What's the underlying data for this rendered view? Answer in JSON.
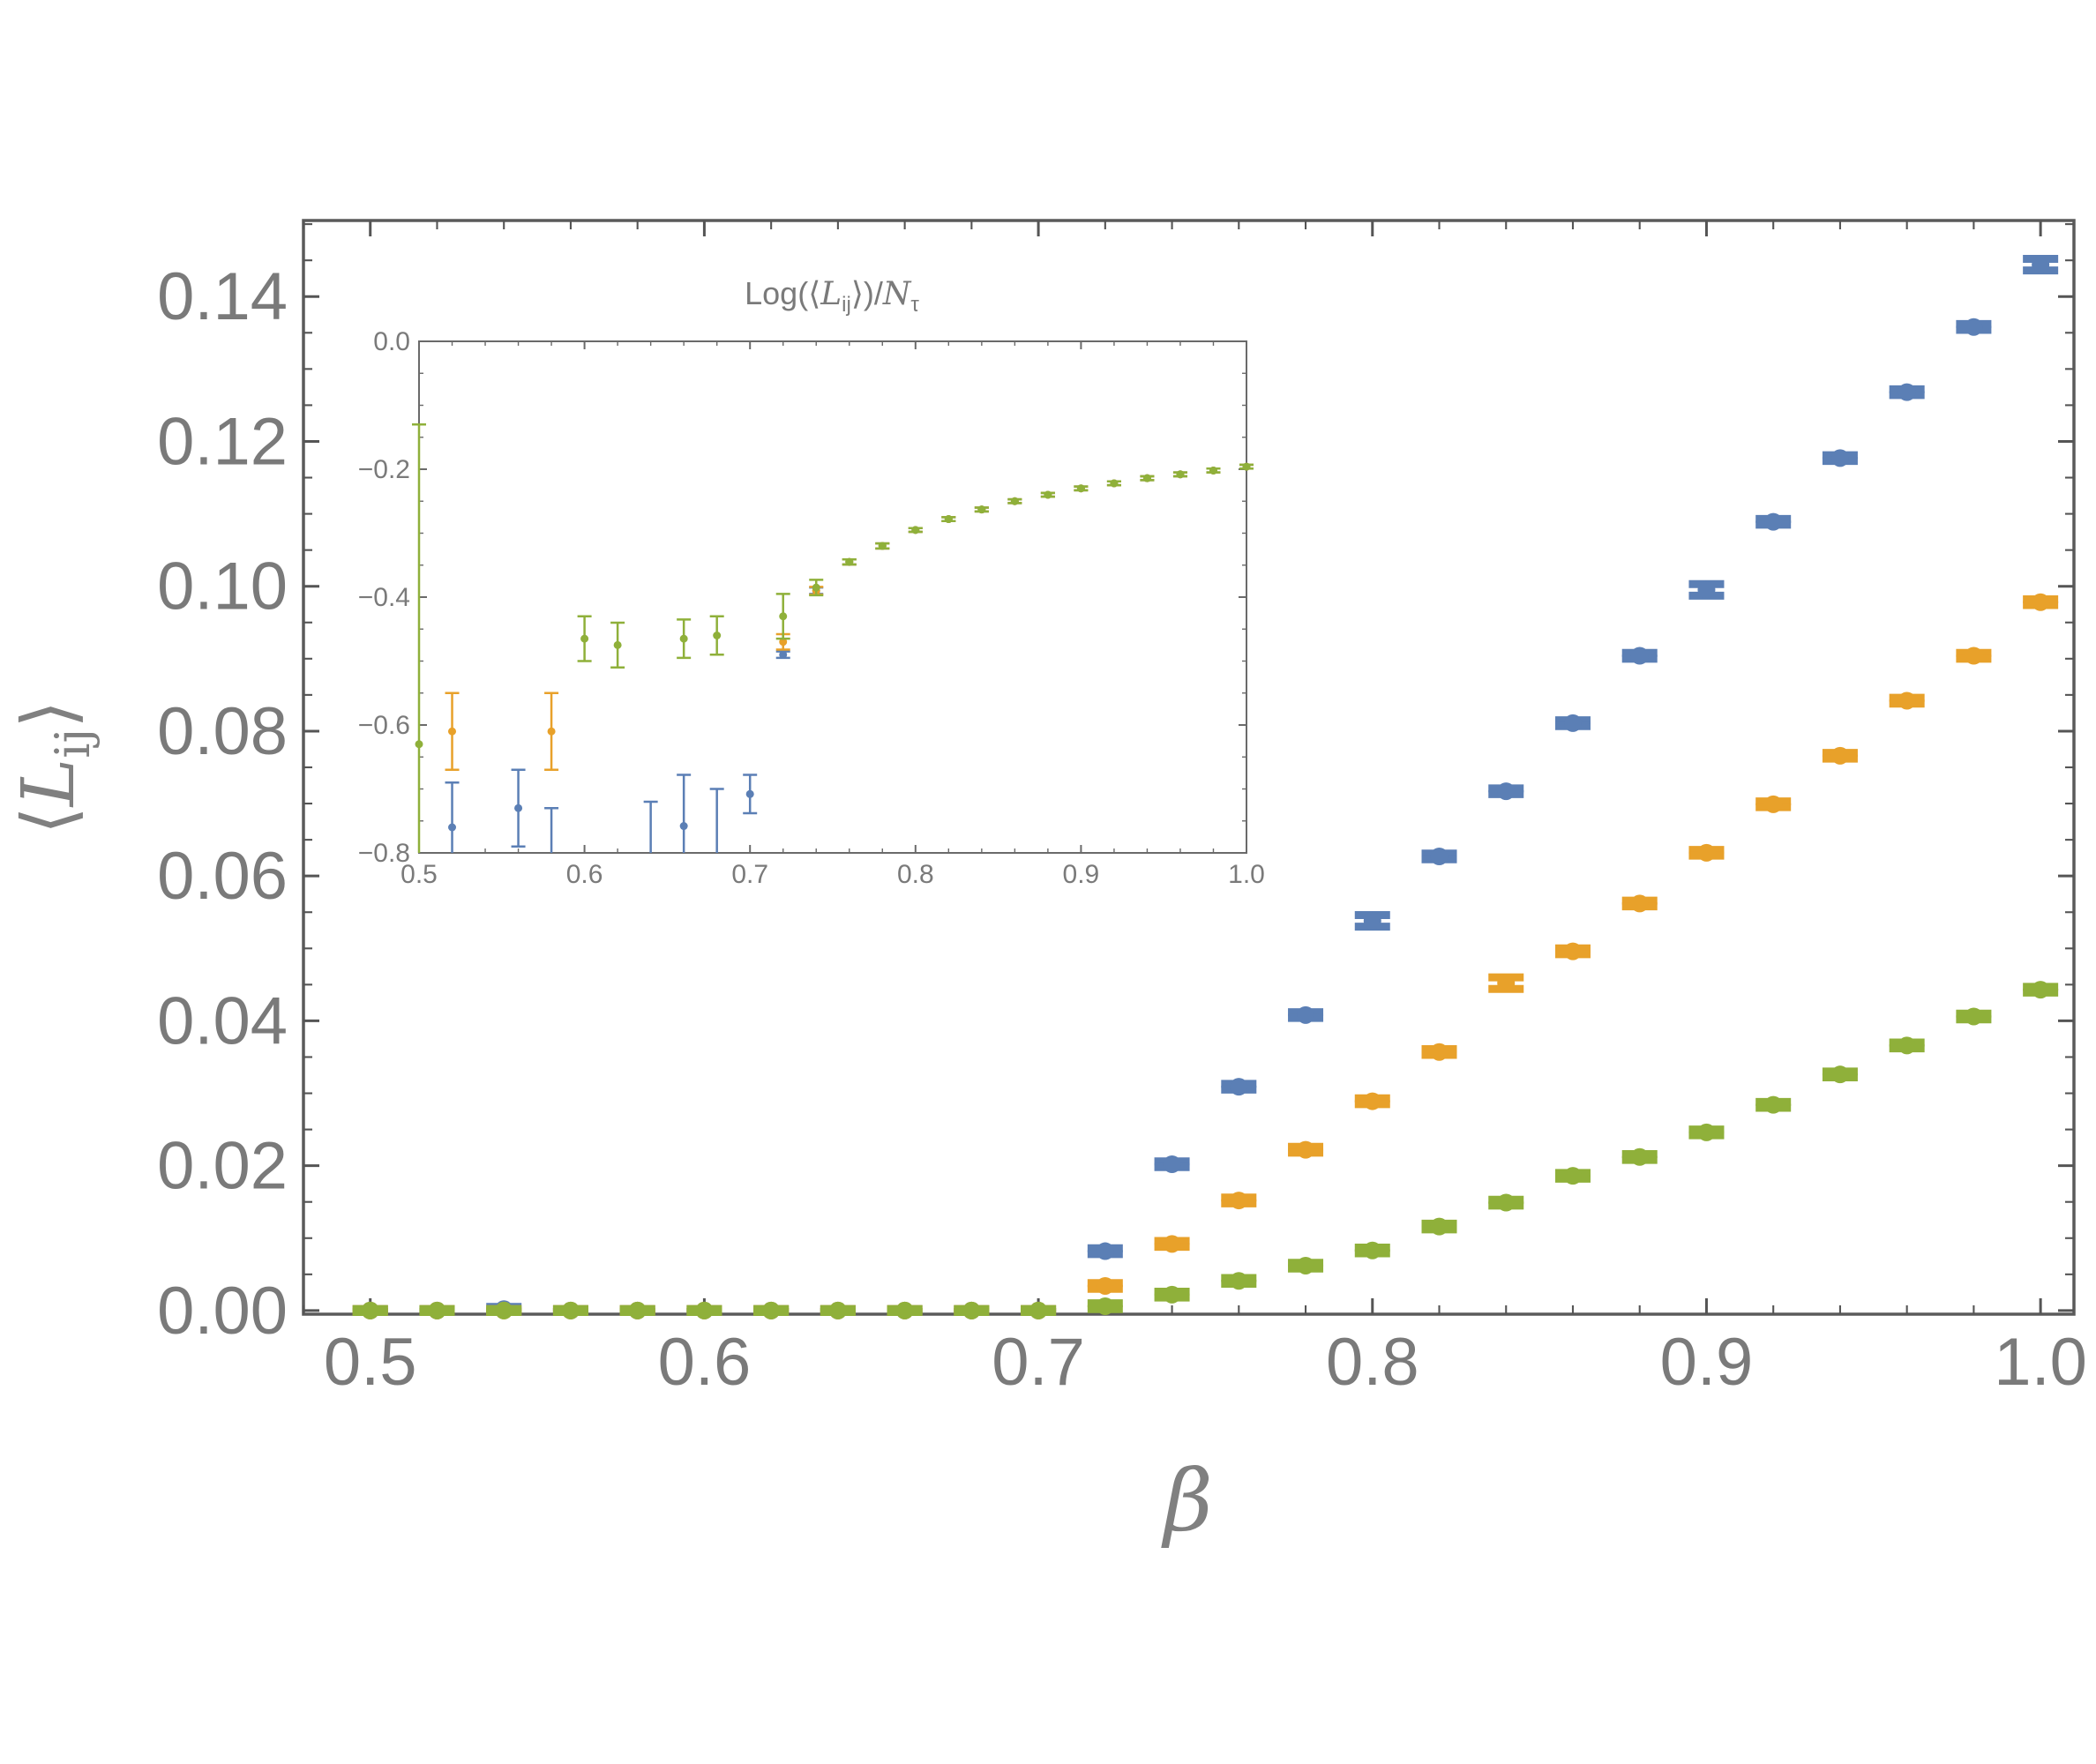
{
  "chart_data": [
    {
      "type": "scatter",
      "panel": "main",
      "title": "",
      "xlabel": "β",
      "ylabel": "⟨L_ij⟩",
      "ylabel_parts": {
        "left": "⟨",
        "symbol": "L",
        "subscript": "ij",
        "right": "⟩"
      },
      "xlim": [
        0.48,
        1.01
      ],
      "ylim": [
        -0.0005,
        0.1505
      ],
      "xticks": [
        0.5,
        0.6,
        0.7,
        0.8,
        0.9,
        1.0
      ],
      "xtick_labels": [
        "0.5",
        "0.6",
        "0.7",
        "0.8",
        "0.9",
        "1.0"
      ],
      "yticks": [
        0.0,
        0.02,
        0.04,
        0.06,
        0.08,
        0.1,
        0.12,
        0.14
      ],
      "ytick_labels": [
        "0.00",
        "0.02",
        "0.04",
        "0.06",
        "0.08",
        "0.10",
        "0.12",
        "0.14"
      ],
      "grid": false,
      "legend": false,
      "series": [
        {
          "color": "#5b7fb5",
          "x": [
            0.5,
            0.52,
            0.54,
            0.56,
            0.58,
            0.6,
            0.62,
            0.64,
            0.66,
            0.68,
            0.7,
            0.72,
            0.74,
            0.76,
            0.78,
            0.8,
            0.82,
            0.84,
            0.86,
            0.88,
            0.9,
            0.92,
            0.94,
            0.96,
            0.98,
            1.0
          ],
          "y": [
            0.0,
            0.0,
            0.0002,
            0.0,
            0.0,
            0.0,
            0.0,
            0.0,
            0.0,
            0.0,
            0.0,
            0.0082,
            0.0202,
            0.0309,
            0.0408,
            0.0538,
            0.0627,
            0.0717,
            0.0811,
            0.0904,
            0.0995,
            0.1089,
            0.1177,
            0.1268,
            0.1358,
            0.1444
          ],
          "err": [
            0.0002,
            0.0002,
            0.0003,
            0.0002,
            0.0002,
            0.0002,
            0.0002,
            0.0002,
            0.0002,
            0.0002,
            0.0002,
            0.0004,
            0.0004,
            0.0004,
            0.0004,
            0.0008,
            0.0004,
            0.0004,
            0.0004,
            0.0004,
            0.0008,
            0.0004,
            0.0004,
            0.0004,
            0.0004,
            0.0008
          ]
        },
        {
          "color": "#e8a12a",
          "x": [
            0.5,
            0.52,
            0.54,
            0.56,
            0.58,
            0.6,
            0.62,
            0.64,
            0.66,
            0.68,
            0.7,
            0.72,
            0.74,
            0.76,
            0.78,
            0.8,
            0.82,
            0.84,
            0.86,
            0.88,
            0.9,
            0.92,
            0.94,
            0.96,
            0.98,
            1.0
          ],
          "y": [
            0.0,
            0.0,
            0.0,
            0.0,
            0.0,
            0.0,
            0.0,
            0.0,
            0.0,
            0.0,
            0.0,
            0.0034,
            0.0092,
            0.0152,
            0.0222,
            0.0289,
            0.0357,
            0.0452,
            0.0496,
            0.0562,
            0.0632,
            0.0699,
            0.0766,
            0.0842,
            0.0904,
            0.0978
          ],
          "err": [
            0.0002,
            0.0002,
            0.0002,
            0.0002,
            0.0002,
            0.0002,
            0.0002,
            0.0002,
            0.0002,
            0.0002,
            0.0002,
            0.0004,
            0.0004,
            0.0004,
            0.0004,
            0.0004,
            0.0004,
            0.0008,
            0.0004,
            0.0004,
            0.0004,
            0.0004,
            0.0004,
            0.0004,
            0.0004,
            0.0004
          ]
        },
        {
          "color": "#8fb03a",
          "x": [
            0.5,
            0.52,
            0.54,
            0.56,
            0.58,
            0.6,
            0.62,
            0.64,
            0.66,
            0.68,
            0.7,
            0.72,
            0.74,
            0.76,
            0.78,
            0.8,
            0.82,
            0.84,
            0.86,
            0.88,
            0.9,
            0.92,
            0.94,
            0.96,
            0.98,
            1.0
          ],
          "y": [
            0.0,
            0.0,
            0.0,
            0.0,
            0.0,
            0.0,
            0.0,
            0.0,
            0.0,
            0.0,
            0.0,
            0.0006,
            0.0022,
            0.0041,
            0.0062,
            0.0083,
            0.0116,
            0.0149,
            0.0186,
            0.0212,
            0.0246,
            0.0284,
            0.0326,
            0.0366,
            0.0406,
            0.0443
          ],
          "err": [
            0.0002,
            0.0002,
            0.0002,
            0.0002,
            0.0002,
            0.0002,
            0.0002,
            0.0002,
            0.0002,
            0.0002,
            0.0002,
            0.0004,
            0.0004,
            0.0004,
            0.0004,
            0.0004,
            0.0004,
            0.0004,
            0.0004,
            0.0004,
            0.0004,
            0.0004,
            0.0004,
            0.0004,
            0.0004,
            0.0004
          ]
        }
      ]
    },
    {
      "type": "scatter",
      "panel": "inset",
      "title": "Log(⟨L_ij⟩)/N_τ",
      "title_parts": {
        "pre": "Log(⟨",
        "symbol": "L",
        "subscript": "ij",
        "mid": "⟩)/",
        "symbol2": "N",
        "subscript2": "τ"
      },
      "xlabel": "",
      "ylabel": "",
      "xlim": [
        0.5,
        1.0
      ],
      "ylim": [
        -0.8,
        0.0
      ],
      "xticks": [
        0.5,
        0.6,
        0.7,
        0.8,
        0.9,
        1.0
      ],
      "xtick_labels": [
        "0.5",
        "0.6",
        "0.7",
        "0.8",
        "0.9",
        "1.0"
      ],
      "yticks": [
        0.0,
        -0.2,
        -0.4,
        -0.6,
        -0.8
      ],
      "ytick_labels": [
        "0.0",
        "−0.2",
        "−0.4",
        "−0.6",
        "−0.8"
      ],
      "grid": false,
      "legend": false,
      "series": [
        {
          "color": "#5b7fb5",
          "x": [
            0.52,
            0.56,
            0.58,
            0.64,
            0.66,
            0.68,
            0.7,
            0.72,
            0.74,
            0.76,
            0.78,
            0.8,
            0.82,
            0.84,
            0.86,
            0.88,
            0.9,
            0.92,
            0.94,
            0.96,
            0.98,
            1.0
          ],
          "y": [
            -0.76,
            -0.73,
            -0.84,
            -0.86,
            -0.758,
            -0.82,
            -0.708,
            -0.49,
            -0.39,
            -0.345,
            -0.32,
            -0.295,
            -0.278,
            -0.263,
            -0.25,
            -0.24,
            -0.23,
            -0.222,
            -0.214,
            -0.208,
            -0.202,
            -0.196
          ],
          "err": [
            0.07,
            0.06,
            0.11,
            0.14,
            0.08,
            0.12,
            0.03,
            0.005,
            0.005,
            0.004,
            0.004,
            0.003,
            0.003,
            0.003,
            0.003,
            0.003,
            0.003,
            0.003,
            0.003,
            0.003,
            0.003,
            0.003
          ]
        },
        {
          "color": "#e8a12a",
          "x": [
            0.52,
            0.58,
            0.72,
            0.74,
            0.76,
            0.78,
            0.8,
            0.82,
            0.84,
            0.86,
            0.88,
            0.9,
            0.92,
            0.94,
            0.96,
            0.98,
            1.0
          ],
          "y": [
            -0.61,
            -0.61,
            -0.47,
            -0.39,
            -0.345,
            -0.32,
            -0.295,
            -0.278,
            -0.263,
            -0.25,
            -0.24,
            -0.23,
            -0.222,
            -0.214,
            -0.208,
            -0.202,
            -0.196
          ],
          "err": [
            0.06,
            0.06,
            0.012,
            0.006,
            0.004,
            0.004,
            0.003,
            0.003,
            0.003,
            0.003,
            0.003,
            0.003,
            0.003,
            0.003,
            0.003,
            0.003,
            0.003
          ]
        },
        {
          "color": "#8fb03a",
          "x": [
            0.5,
            0.6,
            0.62,
            0.66,
            0.68,
            0.72,
            0.74,
            0.76,
            0.78,
            0.8,
            0.82,
            0.84,
            0.86,
            0.88,
            0.9,
            0.92,
            0.94,
            0.96,
            0.98,
            1.0
          ],
          "y": [
            -0.63,
            -0.465,
            -0.475,
            -0.465,
            -0.46,
            -0.43,
            -0.385,
            -0.345,
            -0.32,
            -0.295,
            -0.278,
            -0.263,
            -0.25,
            -0.24,
            -0.23,
            -0.222,
            -0.214,
            -0.208,
            -0.202,
            -0.196
          ],
          "err": [
            0.5,
            0.035,
            0.035,
            0.03,
            0.03,
            0.035,
            0.012,
            0.004,
            0.004,
            0.003,
            0.003,
            0.003,
            0.003,
            0.003,
            0.003,
            0.003,
            0.003,
            0.003,
            0.003,
            0.003
          ]
        }
      ]
    }
  ]
}
